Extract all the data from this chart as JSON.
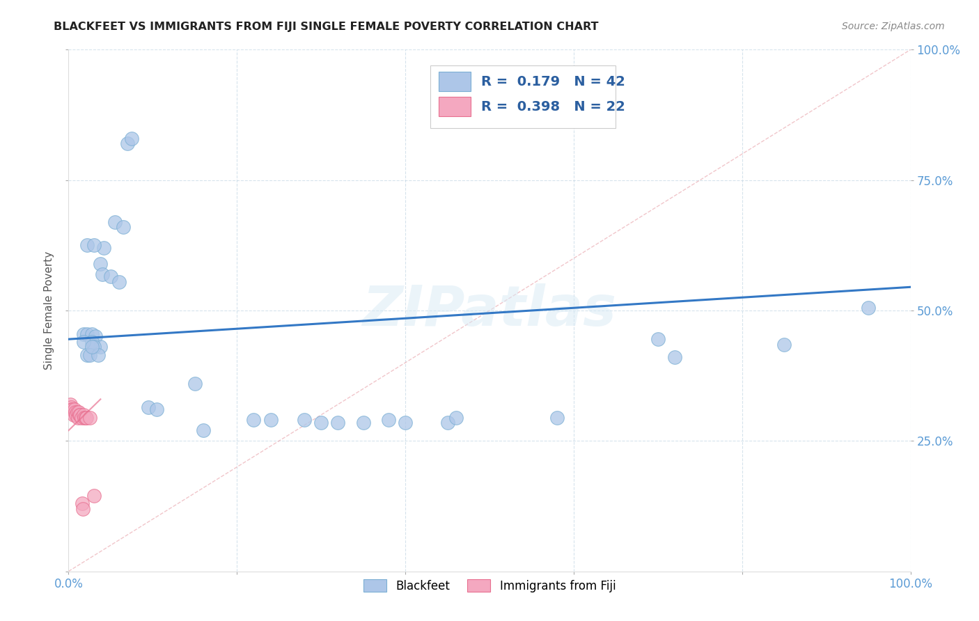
{
  "title": "BLACKFEET VS IMMIGRANTS FROM FIJI SINGLE FEMALE POVERTY CORRELATION CHART",
  "source": "Source: ZipAtlas.com",
  "ylabel": "Single Female Poverty",
  "blue_r": 0.179,
  "blue_n": 42,
  "pink_r": 0.398,
  "pink_n": 22,
  "blue_color": "#adc6e8",
  "pink_color": "#f4a8c0",
  "blue_edge": "#7bafd4",
  "pink_edge": "#e87090",
  "trend_blue_color": "#3378c5",
  "diagonal_color": "#f0b0b8",
  "watermark": "ZIPatlas",
  "blue_x": [
    0.018,
    0.022,
    0.028,
    0.032,
    0.038,
    0.028,
    0.022,
    0.03,
    0.018,
    0.025,
    0.035,
    0.028,
    0.042,
    0.022,
    0.03,
    0.038,
    0.055,
    0.065,
    0.07,
    0.075,
    0.04,
    0.05,
    0.06,
    0.095,
    0.105,
    0.15,
    0.16,
    0.22,
    0.24,
    0.28,
    0.3,
    0.32,
    0.35,
    0.38,
    0.4,
    0.45,
    0.46,
    0.58,
    0.7,
    0.72,
    0.85,
    0.95
  ],
  "blue_y": [
    0.455,
    0.455,
    0.455,
    0.45,
    0.43,
    0.44,
    0.415,
    0.43,
    0.44,
    0.415,
    0.415,
    0.43,
    0.62,
    0.625,
    0.625,
    0.59,
    0.67,
    0.66,
    0.82,
    0.83,
    0.57,
    0.565,
    0.555,
    0.315,
    0.31,
    0.36,
    0.27,
    0.29,
    0.29,
    0.29,
    0.285,
    0.285,
    0.285,
    0.29,
    0.285,
    0.285,
    0.295,
    0.295,
    0.445,
    0.41,
    0.435,
    0.505
  ],
  "pink_x": [
    0.002,
    0.003,
    0.004,
    0.005,
    0.006,
    0.007,
    0.008,
    0.009,
    0.01,
    0.011,
    0.012,
    0.013,
    0.014,
    0.015,
    0.016,
    0.017,
    0.018,
    0.019,
    0.02,
    0.021,
    0.025,
    0.03
  ],
  "pink_y": [
    0.32,
    0.315,
    0.31,
    0.31,
    0.3,
    0.31,
    0.305,
    0.3,
    0.305,
    0.295,
    0.305,
    0.3,
    0.3,
    0.295,
    0.13,
    0.12,
    0.3,
    0.295,
    0.295,
    0.295,
    0.295,
    0.145
  ],
  "blue_trend": [
    0.0,
    0.445,
    1.0,
    0.545
  ],
  "pink_trend": [
    0.0,
    0.27,
    0.038,
    0.33
  ]
}
